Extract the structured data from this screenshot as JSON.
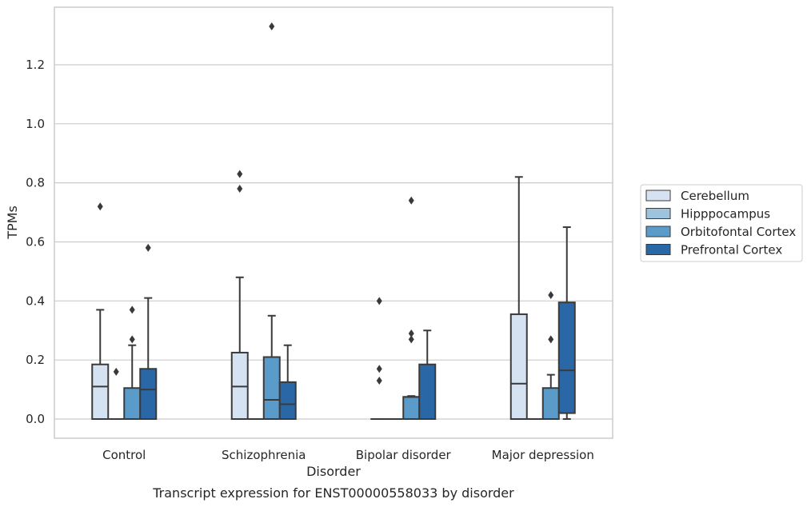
{
  "chart_data": {
    "type": "box",
    "caption": "Transcript expression for ENST00000558033 by disorder",
    "xlabel": "Disorder",
    "ylabel": "TPMs",
    "ylim": [
      -0.065,
      1.395
    ],
    "yticks": [
      "0.0",
      "0.2",
      "0.4",
      "0.6",
      "0.8",
      "1.0",
      "1.2"
    ],
    "grid": true,
    "legend_position": "right",
    "categories": [
      "Control",
      "Schizophrenia",
      "Bipolar disorder",
      "Major depression"
    ],
    "series": [
      {
        "name": "Cerebellum",
        "color": "#d4e2f1",
        "boxes": [
          {
            "whisker_low": 0,
            "q1": 0,
            "median": 0.11,
            "q3": 0.185,
            "whisker_high": 0.37,
            "outliers": [
              0.72
            ]
          },
          {
            "whisker_low": 0,
            "q1": 0,
            "median": 0.11,
            "q3": 0.225,
            "whisker_high": 0.48,
            "outliers": [
              0.78,
              0.83
            ]
          },
          {
            "whisker_low": 0,
            "q1": 0,
            "median": 0,
            "q3": 0,
            "whisker_high": 0,
            "outliers": [
              0.13,
              0.17,
              0.4
            ]
          },
          {
            "whisker_low": 0,
            "q1": 0,
            "median": 0.12,
            "q3": 0.355,
            "whisker_high": 0.82,
            "outliers": []
          }
        ]
      },
      {
        "name": "Hipppocampus",
        "color": "#9dc3de",
        "boxes": [
          {
            "whisker_low": 0,
            "q1": 0,
            "median": 0,
            "q3": 0,
            "whisker_high": 0,
            "outliers": [
              0.16
            ]
          },
          {
            "whisker_low": 0,
            "q1": 0,
            "median": 0,
            "q3": 0,
            "whisker_high": 0,
            "outliers": []
          },
          {
            "whisker_low": 0,
            "q1": 0,
            "median": 0,
            "q3": 0,
            "whisker_high": 0,
            "outliers": []
          },
          {
            "whisker_low": 0,
            "q1": 0,
            "median": 0,
            "q3": 0,
            "whisker_high": 0,
            "outliers": []
          }
        ]
      },
      {
        "name": "Orbitofontal Cortex",
        "color": "#5a9bc9",
        "boxes": [
          {
            "whisker_low": 0,
            "q1": 0,
            "median": 0,
            "q3": 0.105,
            "whisker_high": 0.25,
            "outliers": [
              0.27,
              0.37
            ]
          },
          {
            "whisker_low": 0,
            "q1": 0,
            "median": 0.065,
            "q3": 0.21,
            "whisker_high": 0.35,
            "outliers": [
              1.33
            ]
          },
          {
            "whisker_low": 0,
            "q1": 0,
            "median": 0.075,
            "q3": 0.075,
            "whisker_high": 0.078,
            "outliers": [
              0.27,
              0.29,
              0.74
            ]
          },
          {
            "whisker_low": 0,
            "q1": 0,
            "median": 0,
            "q3": 0.105,
            "whisker_high": 0.15,
            "outliers": [
              0.27,
              0.42
            ]
          }
        ]
      },
      {
        "name": "Prefrontal Cortex",
        "color": "#2a67a6",
        "boxes": [
          {
            "whisker_low": 0,
            "q1": 0,
            "median": 0.1,
            "q3": 0.17,
            "whisker_high": 0.41,
            "outliers": [
              0.58
            ]
          },
          {
            "whisker_low": 0,
            "q1": 0,
            "median": 0.05,
            "q3": 0.125,
            "whisker_high": 0.25,
            "outliers": []
          },
          {
            "whisker_low": 0,
            "q1": 0,
            "median": 0,
            "q3": 0.185,
            "whisker_high": 0.3,
            "outliers": []
          },
          {
            "whisker_low": 0,
            "q1": 0.02,
            "median": 0.165,
            "q3": 0.395,
            "whisker_high": 0.65,
            "outliers": []
          }
        ]
      }
    ]
  }
}
